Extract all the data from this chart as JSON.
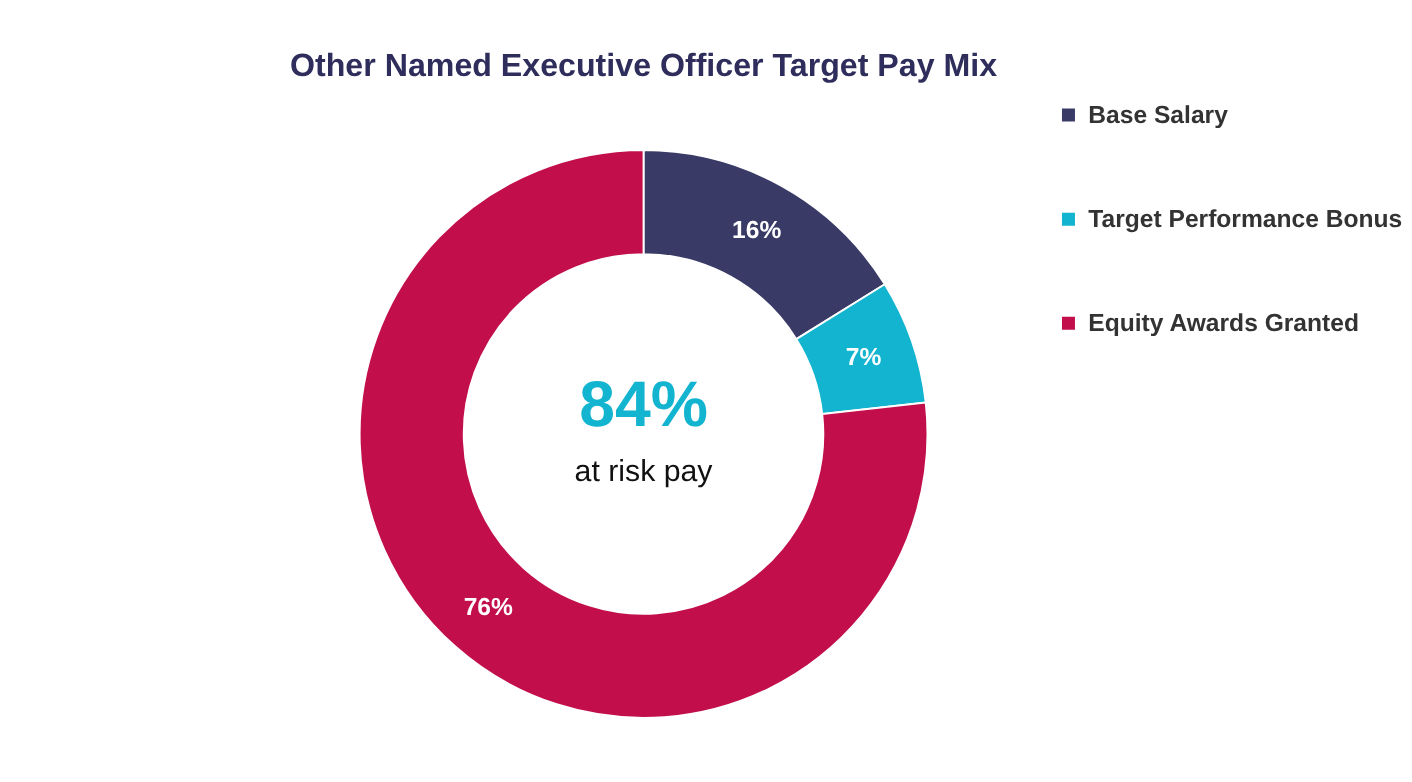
{
  "chart_data": {
    "type": "donut",
    "title": "Other Named Executive Officer Target Pay Mix",
    "categories": [
      "Base Salary",
      "Target Performance Bonus",
      "Equity Awards Granted"
    ],
    "values": [
      16,
      7,
      76
    ],
    "colors": [
      "#393a66",
      "#12b4cf",
      "#c20f4b"
    ],
    "value_labels": [
      "16%",
      "7%",
      "76%"
    ],
    "annotations": [
      "84%",
      "at risk pay"
    ],
    "legend": "right"
  }
}
